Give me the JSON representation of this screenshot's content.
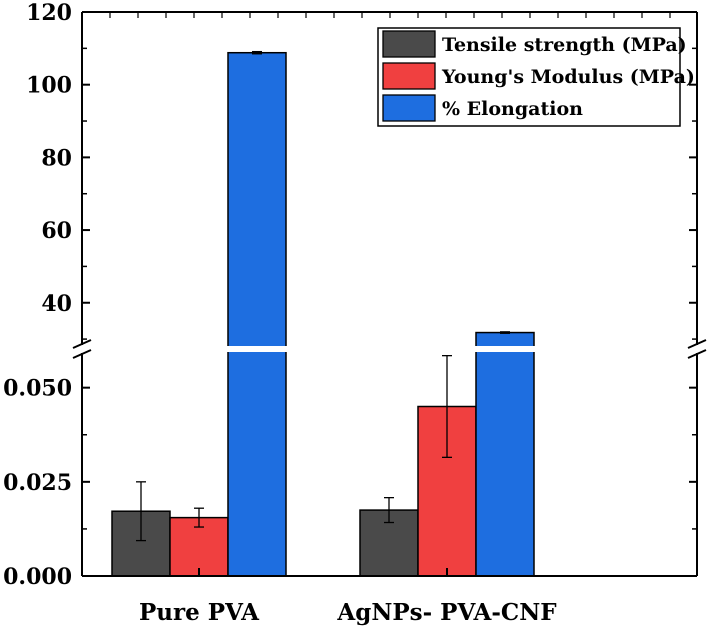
{
  "chart_data": {
    "type": "bar",
    "title": "",
    "xlabel": "",
    "ylabel": "",
    "categories": [
      "Pure PVA",
      "AgNPs- PVA-CNF"
    ],
    "y_axis_break": {
      "lower_range": [
        0,
        0.06
      ],
      "upper_range": [
        27,
        120
      ]
    },
    "lower_ticks": [
      "0.000",
      "0.025",
      "0.050"
    ],
    "lower_tick_values": [
      0,
      0.025,
      0.05
    ],
    "upper_ticks": [
      "40",
      "60",
      "80",
      "100",
      "120"
    ],
    "upper_tick_values": [
      40,
      60,
      80,
      100,
      120
    ],
    "series": [
      {
        "name": "Tensile strength (MPa)",
        "color": "#4a4a4a",
        "values": [
          0.0172,
          0.0175
        ],
        "errors": [
          0.0078,
          0.0033
        ]
      },
      {
        "name": "Young's Modulus (MPa)",
        "color": "#f04040",
        "values": [
          0.0155,
          0.045
        ],
        "errors": [
          0.0025,
          0.0135
        ]
      },
      {
        "name": "% Elongation",
        "color": "#1e6ee0",
        "values": [
          108.8,
          31.8
        ],
        "errors": [
          0.3,
          0.2
        ]
      }
    ],
    "legend_position": "top-right"
  }
}
